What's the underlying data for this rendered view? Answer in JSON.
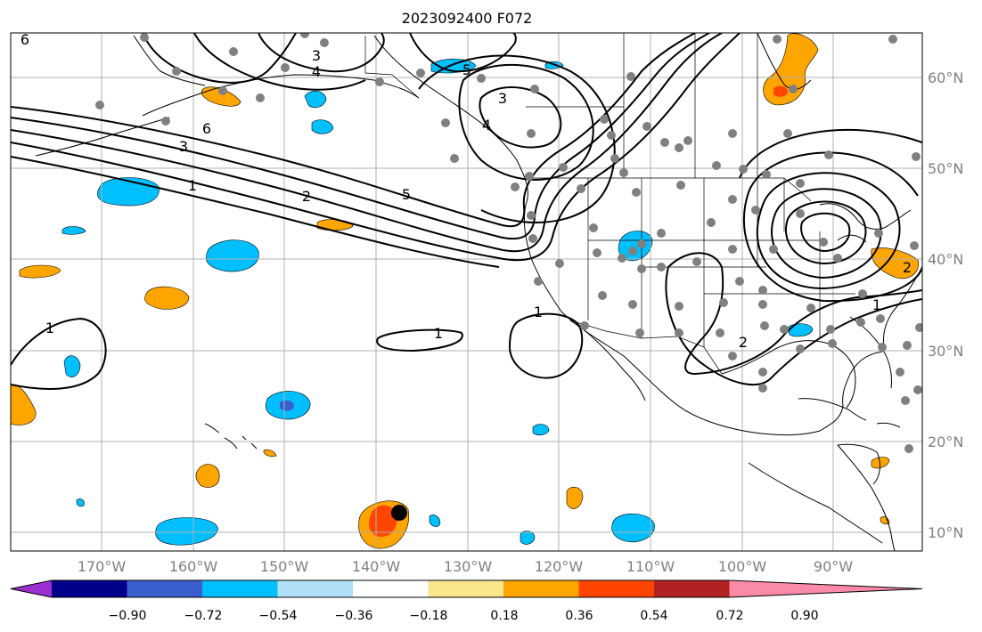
{
  "title": "2023092400 F072",
  "map": {
    "lon_range": [
      -180,
      -80.5
    ],
    "lat_range": [
      8,
      65
    ],
    "lon_ticks": [
      "170°W",
      "160°W",
      "150°W",
      "140°W",
      "130°W",
      "120°W",
      "110°W",
      "100°W",
      "90°W"
    ],
    "lat_ticks": [
      "10°N",
      "20°N",
      "30°N",
      "40°N",
      "50°N",
      "60°N"
    ],
    "grid": true
  },
  "colorbar": {
    "levels": [
      "−0.90",
      "−0.72",
      "−0.54",
      "−0.36",
      "−0.18",
      "0.18",
      "0.36",
      "0.54",
      "0.72",
      "0.90"
    ],
    "colors": [
      "#9b30d0",
      "#00008b",
      "#3a5fcd",
      "#00bfff",
      "#b0e0f8",
      "#ffffff",
      "#fbe68b",
      "#ffa500",
      "#ff4500",
      "#b22222",
      "#fa8aa8"
    ],
    "extend": "both"
  },
  "contour_labels": [
    "6",
    "3",
    "4",
    "5",
    "3",
    "4",
    "6",
    "3",
    "1",
    "2",
    "5",
    "1",
    "1",
    "1",
    "2",
    "1",
    "2"
  ],
  "colors": {
    "station_dot": "#808080",
    "storm_marker": "#000000",
    "contour": "#000000",
    "gridline": "#b0b0b0"
  }
}
